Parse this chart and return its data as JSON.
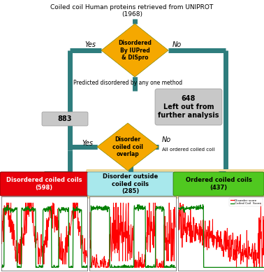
{
  "title_line1": "Coiled coil Human proteins retrieved from UNIPROT",
  "title_line2": "(1968)",
  "diamond1_text": "Disordered\nBy IUPred\n& DISpro",
  "diamond2_text": "Disorder\ncoiled coil\noverlap",
  "box_648_text": "648\nLeft out from\nfurther analysis",
  "box_648_label": "Predicted disordered by any one method",
  "box_883_text": "883",
  "box_disccs_text": "Disordered coiled coils\n(598)",
  "box_doccs_text": "Disorder outside\ncoiled coils\n(285)",
  "box_occs_text": "Ordered coiled coils\n(437)",
  "yes1": "Yes",
  "no1": "No",
  "yes2": "Yes",
  "no2": "No",
  "all_ordered": "All ordered coiled coil",
  "diamond_color": "#F5A800",
  "teal_color": "#2E7D7D",
  "red_color": "#E8000A",
  "cyan_color": "#A8E8EC",
  "green_color": "#50C820",
  "gray_color": "#C8C8C8",
  "light_yellow": "#EDD898",
  "legend_disorder": "Disorder score",
  "legend_coiled": "Coiled Coil  Score"
}
